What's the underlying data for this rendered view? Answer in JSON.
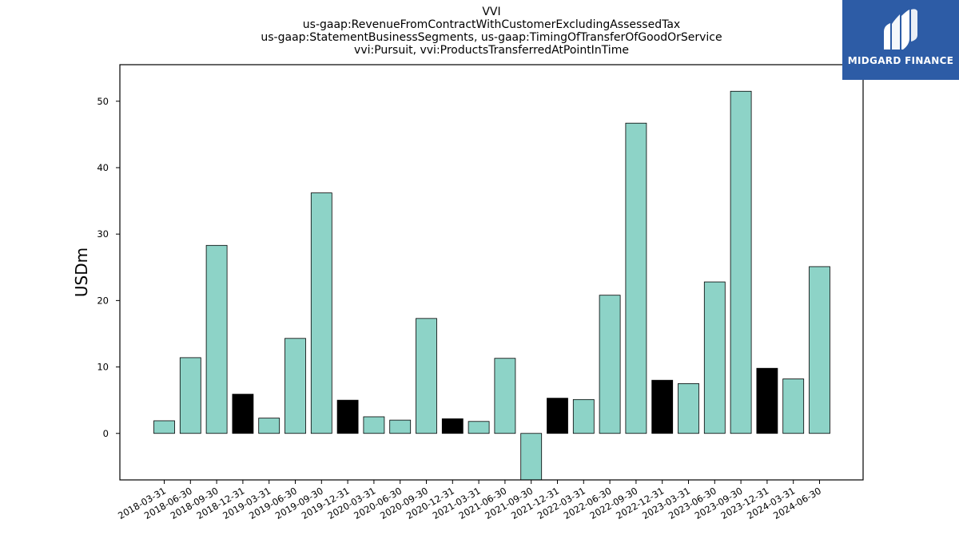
{
  "title_lines": [
    "VVI",
    "us-gaap:RevenueFromContractWithCustomerExcludingAssessedTax",
    "us-gaap:StatementBusinessSegments, us-gaap:TimingOfTransferOfGoodOrService",
    "vvi:Pursuit, vvi:ProductsTransferredAtPointInTime"
  ],
  "logo": {
    "text": "MIDGARD FINANCE",
    "background": "#2d5ca6"
  },
  "chart_data": {
    "type": "bar",
    "ylabel": "USDm",
    "xlabel": "",
    "ylim": [
      -7,
      55.5
    ],
    "yticks": [
      0,
      10,
      20,
      30,
      40,
      50
    ],
    "grid": false,
    "colors": {
      "quarter": "#8dd3c7",
      "year_end": "#000000"
    },
    "categories": [
      "2018-03-31",
      "2018-06-30",
      "2018-09-30",
      "2018-12-31",
      "2019-03-31",
      "2019-06-30",
      "2019-09-30",
      "2019-12-31",
      "2020-03-31",
      "2020-06-30",
      "2020-09-30",
      "2020-12-31",
      "2021-03-31",
      "2021-06-30",
      "2021-09-30",
      "2021-12-31",
      "2022-03-31",
      "2022-06-30",
      "2022-09-30",
      "2022-12-31",
      "2023-03-31",
      "2023-06-30",
      "2023-09-30",
      "2023-12-31",
      "2024-03-31",
      "2024-06-30"
    ],
    "values": [
      1.9,
      11.4,
      28.3,
      5.9,
      2.3,
      14.3,
      36.2,
      5.0,
      2.5,
      2.0,
      17.3,
      2.2,
      1.8,
      11.3,
      -7.5,
      5.3,
      5.1,
      20.8,
      46.7,
      8.0,
      7.5,
      22.8,
      51.5,
      9.8,
      8.2,
      25.1
    ],
    "year_end_flags": [
      false,
      false,
      false,
      true,
      false,
      false,
      false,
      true,
      false,
      false,
      false,
      true,
      false,
      false,
      false,
      true,
      false,
      false,
      false,
      true,
      false,
      false,
      false,
      true,
      false,
      false
    ]
  }
}
